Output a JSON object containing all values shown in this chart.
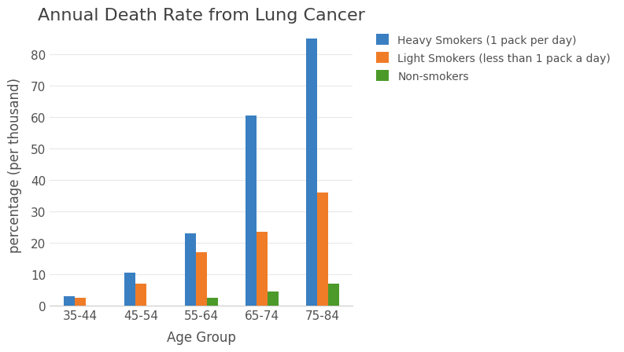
{
  "title": "Annual Death Rate from Lung Cancer",
  "xlabel": "Age Group",
  "ylabel": "percentage (per thousand)",
  "categories": [
    "35-44",
    "45-54",
    "55-64",
    "65-74",
    "75-84"
  ],
  "series": [
    {
      "label": "Heavy Smokers (1 pack per day)",
      "color": "#3a7fc1",
      "values": [
        3.0,
        10.5,
        23.0,
        60.5,
        85.0
      ]
    },
    {
      "label": "Light Smokers (less than 1 pack a day)",
      "color": "#f07c28",
      "values": [
        2.5,
        7.0,
        17.0,
        23.5,
        36.0
      ]
    },
    {
      "label": "Non-smokers",
      "color": "#4c9a2a",
      "values": [
        0.0,
        0.0,
        2.5,
        4.5,
        7.0
      ]
    }
  ],
  "ylim": [
    0,
    90
  ],
  "yticks": [
    0,
    10,
    20,
    30,
    40,
    50,
    60,
    70,
    80
  ],
  "bar_width": 0.18,
  "background_color": "#ffffff",
  "title_fontsize": 16,
  "label_fontsize": 12,
  "tick_fontsize": 11,
  "legend_fontsize": 10,
  "spine_color": "#cccccc",
  "title_color": "#404040",
  "label_color": "#505050",
  "tick_color": "#505050",
  "grid_color": "#e8e8e8"
}
